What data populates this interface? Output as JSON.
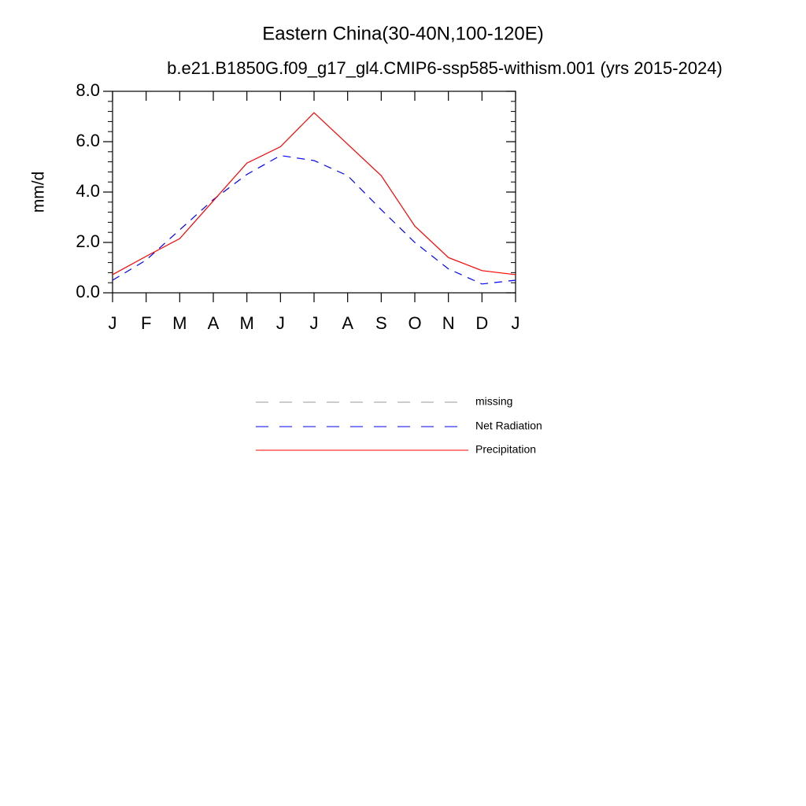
{
  "chart_data": {
    "type": "line",
    "title": "Eastern China(30-40N,100-120E)",
    "subtitle": "b.e21.B1850G.f09_g17_gl4.CMIP6-ssp585-withism.001 (yrs 2015-2024)",
    "y_label": "mm/d",
    "categories": [
      "J",
      "F",
      "M",
      "A",
      "M",
      "J",
      "J",
      "A",
      "S",
      "O",
      "N",
      "D",
      "J"
    ],
    "series": [
      {
        "name": "missing",
        "color": "#999999",
        "dash": true,
        "values": [
          null,
          null,
          null,
          null,
          null,
          null,
          null,
          null,
          null,
          null,
          null,
          null,
          null
        ]
      },
      {
        "name": "Net Radiation",
        "color": "#0000ff",
        "dash": true,
        "values": [
          0.5,
          1.3,
          2.5,
          3.7,
          4.7,
          5.45,
          5.25,
          4.65,
          3.3,
          2.0,
          0.95,
          0.35,
          0.5
        ]
      },
      {
        "name": "Precipitation",
        "color": "#ff0000",
        "dash": false,
        "values": [
          0.72,
          1.45,
          2.15,
          3.65,
          5.15,
          5.8,
          7.15,
          5.9,
          4.65,
          2.65,
          1.4,
          0.88,
          0.72
        ]
      }
    ],
    "ylim": [
      0,
      8
    ],
    "yticks": [
      {
        "value": 0,
        "label": "0.0"
      },
      {
        "value": 2,
        "label": "2.0"
      },
      {
        "value": 4,
        "label": "4.0"
      },
      {
        "value": 6,
        "label": "6.0"
      },
      {
        "value": 8,
        "label": "8.0"
      }
    ],
    "yminorticks": [
      0.4,
      0.8,
      1.2,
      1.6,
      2.4,
      2.8,
      3.2,
      3.6,
      4.4,
      4.8,
      5.2,
      5.6,
      6.4,
      6.8,
      7.2,
      7.6
    ]
  }
}
